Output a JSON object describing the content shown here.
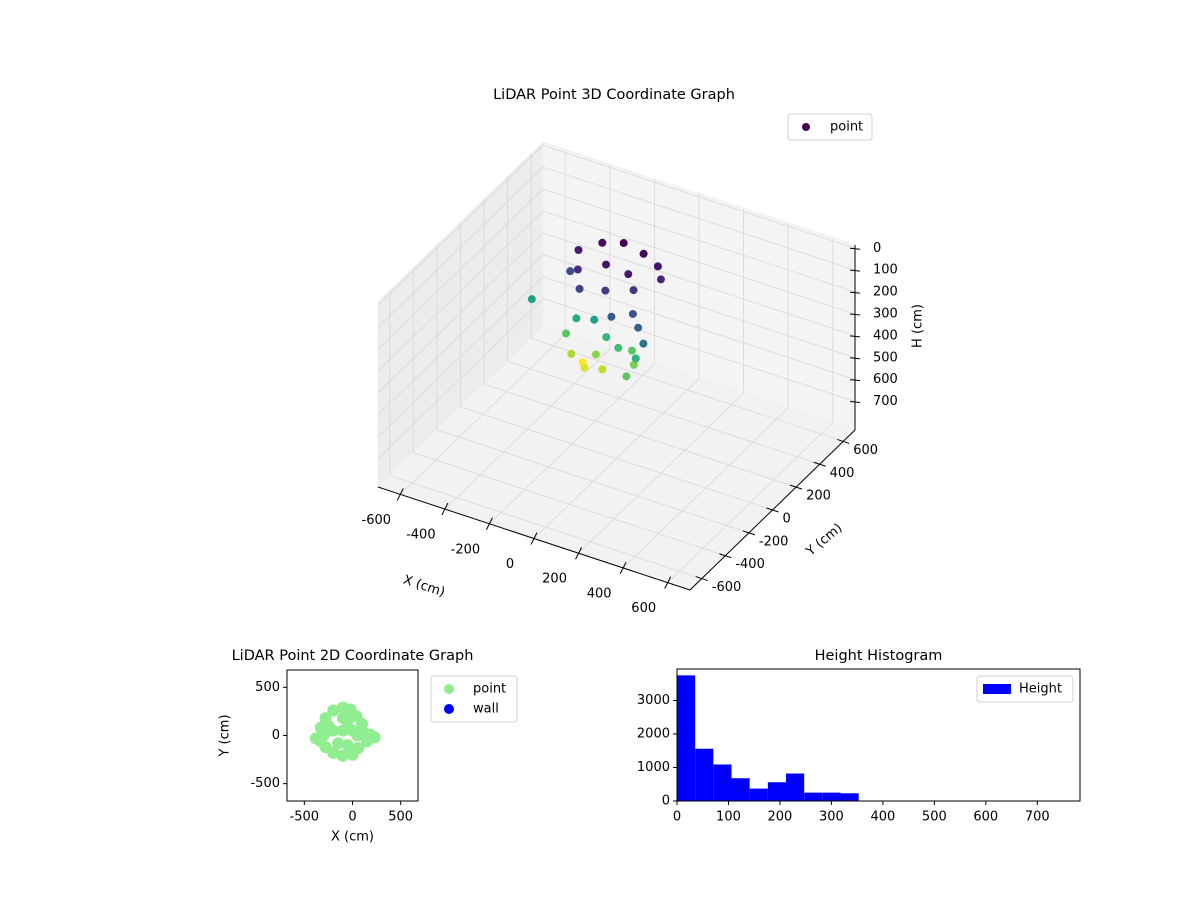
{
  "chart_data": [
    {
      "type": "scatter3d",
      "title": "LiDAR Point 3D Coordinate Graph",
      "xlabel": "X (cm)",
      "ylabel": "Y (cm)",
      "zlabel": "H (cm)",
      "xlim": [
        -700,
        700
      ],
      "ylim": [
        -700,
        700
      ],
      "zlim": [
        -15,
        830
      ],
      "z_inverted": true,
      "xticks": [
        -600,
        -400,
        -200,
        0,
        200,
        400,
        600
      ],
      "yticks": [
        -600,
        -400,
        -200,
        0,
        200,
        400,
        600
      ],
      "zticks": [
        0,
        100,
        200,
        300,
        400,
        500,
        600,
        700
      ],
      "colormap": "viridis",
      "legend": "upper right",
      "grid": true,
      "series": [
        {
          "name": "point",
          "color": "#440154",
          "x": [
            -250,
            -180,
            -100,
            0,
            80,
            120,
            -200,
            -100,
            0,
            50,
            -150,
            -50,
            100,
            150,
            200,
            -250,
            30,
            -200,
            -150,
            -120,
            -80,
            -50,
            0,
            40,
            80,
            120,
            -180,
            -100,
            -30,
            150,
            -380,
            150
          ],
          "y": [
            150,
            220,
            250,
            230,
            200,
            150,
            50,
            100,
            100,
            50,
            -30,
            0,
            -50,
            -100,
            -150,
            80,
            -100,
            -50,
            -100,
            -60,
            -120,
            -80,
            -120,
            -60,
            -20,
            -80,
            0,
            0,
            -30,
            -120,
            0,
            -200
          ],
          "z": [
            40,
            20,
            10,
            15,
            30,
            50,
            60,
            30,
            40,
            70,
            90,
            80,
            110,
            130,
            160,
            100,
            120,
            300,
            350,
            400,
            380,
            330,
            360,
            280,
            300,
            320,
            250,
            230,
            270,
            260,
            230,
            300
          ]
        }
      ]
    },
    {
      "type": "scatter",
      "title": "LiDAR Point 2D Coordinate Graph",
      "xlabel": "X (cm)",
      "ylabel": "Y (cm)",
      "xlim": [
        -680,
        680
      ],
      "ylim": [
        -680,
        680
      ],
      "xticks": [
        -500,
        0,
        500
      ],
      "yticks": [
        -500,
        0,
        500
      ],
      "legend": "outside",
      "series": [
        {
          "name": "point",
          "color": "#90ee90",
          "x": [
            -380,
            -330,
            -280,
            -200,
            -100,
            -20,
            40,
            100,
            180,
            230,
            150,
            60,
            0,
            -100,
            -200,
            -280,
            -330,
            -100,
            -200,
            0,
            -150,
            -50,
            50,
            -250,
            -100,
            -300,
            100,
            -50
          ],
          "y": [
            -30,
            80,
            180,
            260,
            290,
            270,
            200,
            120,
            10,
            -20,
            -60,
            -130,
            -200,
            -210,
            -180,
            -120,
            -60,
            50,
            50,
            50,
            -80,
            -100,
            0,
            100,
            180,
            0,
            50,
            150
          ]
        },
        {
          "name": "wall",
          "color": "#0000ff",
          "x": [],
          "y": []
        }
      ]
    },
    {
      "type": "histogram",
      "title": "Height Histogram",
      "xlim": [
        0,
        783
      ],
      "ylim": [
        0,
        3940
      ],
      "xticks": [
        0,
        100,
        200,
        300,
        400,
        500,
        600,
        700
      ],
      "yticks": [
        0,
        1000,
        2000,
        3000
      ],
      "legend": "upper right",
      "bins": [
        0,
        35.3,
        70.6,
        105.9,
        141.2,
        176.5,
        211.8,
        247.1,
        282.4,
        317.7,
        353
      ],
      "series": [
        {
          "name": "Height",
          "color": "#0000ff",
          "values": [
            3750,
            1560,
            1090,
            680,
            370,
            560,
            820,
            250,
            250,
            230
          ]
        }
      ]
    }
  ]
}
